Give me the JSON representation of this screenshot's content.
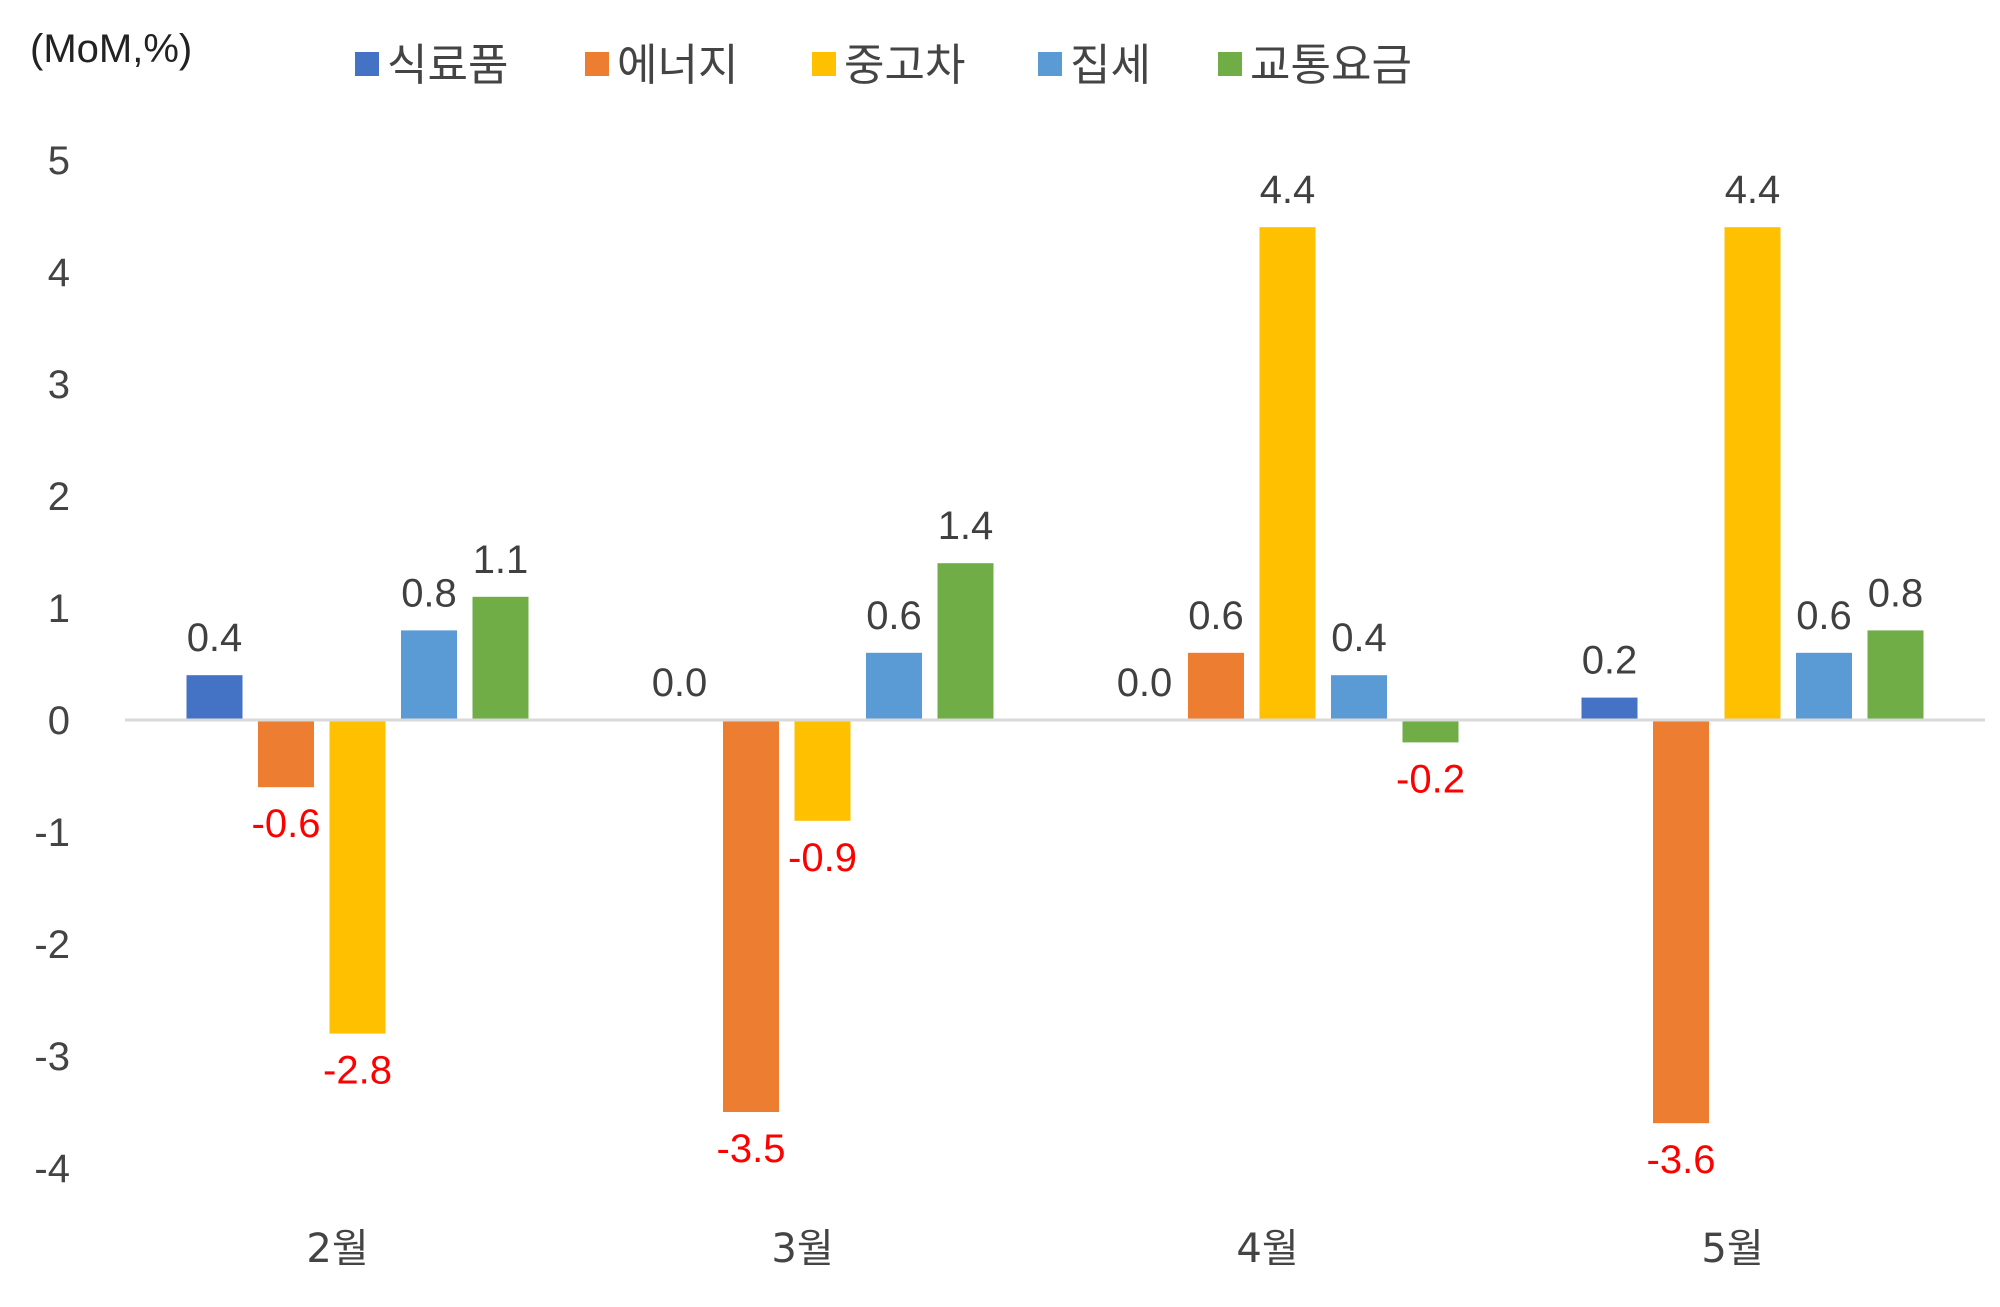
{
  "chart_data": {
    "type": "bar",
    "unit_label": "(MoM,%)",
    "categories": [
      "2월",
      "3월",
      "4월",
      "5월"
    ],
    "series": [
      {
        "name": "식료품",
        "color": "#4472C4",
        "values": [
          0.4,
          0.0,
          0.0,
          0.2
        ]
      },
      {
        "name": "에너지",
        "color": "#ED7D31",
        "values": [
          -0.6,
          -3.5,
          0.6,
          -3.6
        ]
      },
      {
        "name": "중고차",
        "color": "#FFC000",
        "values": [
          -2.8,
          -0.9,
          4.4,
          4.4
        ]
      },
      {
        "name": "집세",
        "color": "#5B9BD5",
        "values": [
          0.8,
          0.6,
          0.4,
          0.6
        ]
      },
      {
        "name": "교통요금",
        "color": "#70AD47",
        "values": [
          1.1,
          1.4,
          -0.2,
          0.8
        ]
      }
    ],
    "yticks": [
      5,
      4,
      3,
      2,
      1,
      0,
      -1,
      -2,
      -3,
      -4
    ],
    "ylim": [
      -4,
      5
    ],
    "grid": false,
    "legend_position": "top",
    "positive_label_color": "#404040",
    "negative_label_color": "#FF0000"
  }
}
